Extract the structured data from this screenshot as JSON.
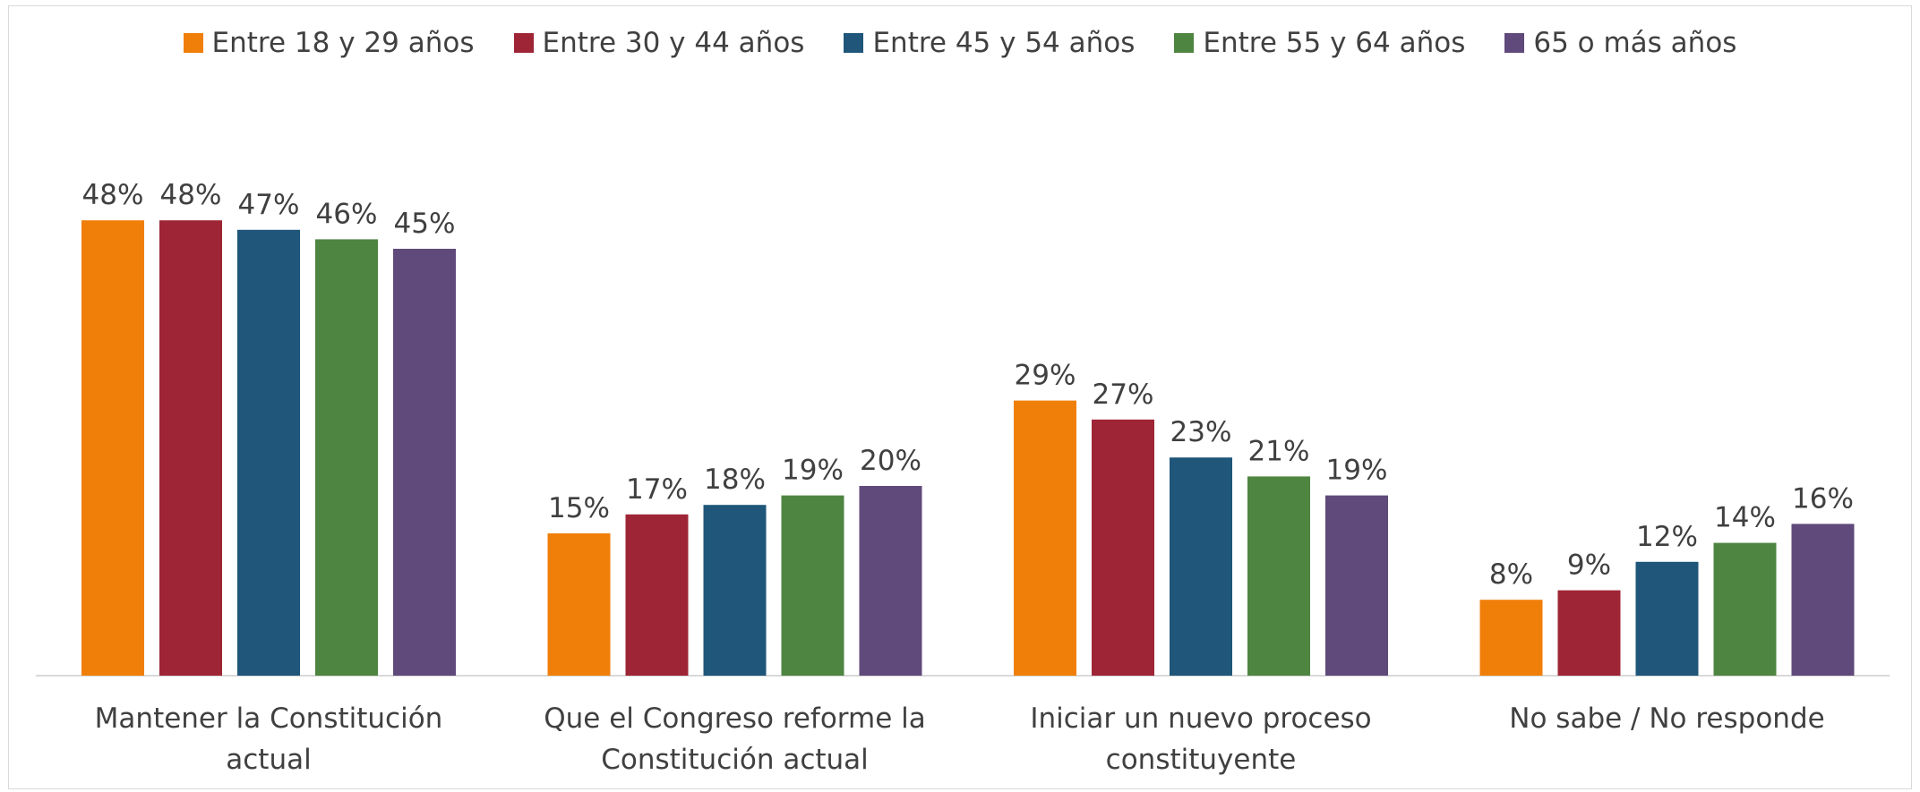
{
  "chart_data": {
    "type": "bar",
    "categories": [
      "Mantener la Constitución actual",
      "Que el Congreso reforme la Constitución actual",
      "Iniciar un nuevo proceso constituyente",
      "No sabe / No responde"
    ],
    "series": [
      {
        "name": "Entre 18 y 29 años",
        "color": "#f07f09",
        "values": [
          48,
          15,
          29,
          8
        ],
        "value_labels": [
          "48%",
          "15%",
          "29%",
          "8%"
        ]
      },
      {
        "name": "Entre 30 y 44 años",
        "color": "#9e2536",
        "values": [
          48,
          17,
          27,
          9
        ],
        "value_labels": [
          "48%",
          "17%",
          "27%",
          "9%"
        ]
      },
      {
        "name": "Entre 45 y 54 años",
        "color": "#1f567a",
        "values": [
          47,
          18,
          23,
          12
        ],
        "value_labels": [
          "47%",
          "18%",
          "23%",
          "12%"
        ]
      },
      {
        "name": "Entre 55 y 64 años",
        "color": "#4e8541",
        "values": [
          46,
          19,
          21,
          14
        ],
        "value_labels": [
          "46%",
          "19%",
          "21%",
          "14%"
        ]
      },
      {
        "name": "65 o más años",
        "color": "#604a7b",
        "values": [
          45,
          20,
          19,
          16
        ],
        "value_labels": [
          "45%",
          "20%",
          "19%",
          "16%"
        ]
      }
    ],
    "legend": "top"
  }
}
